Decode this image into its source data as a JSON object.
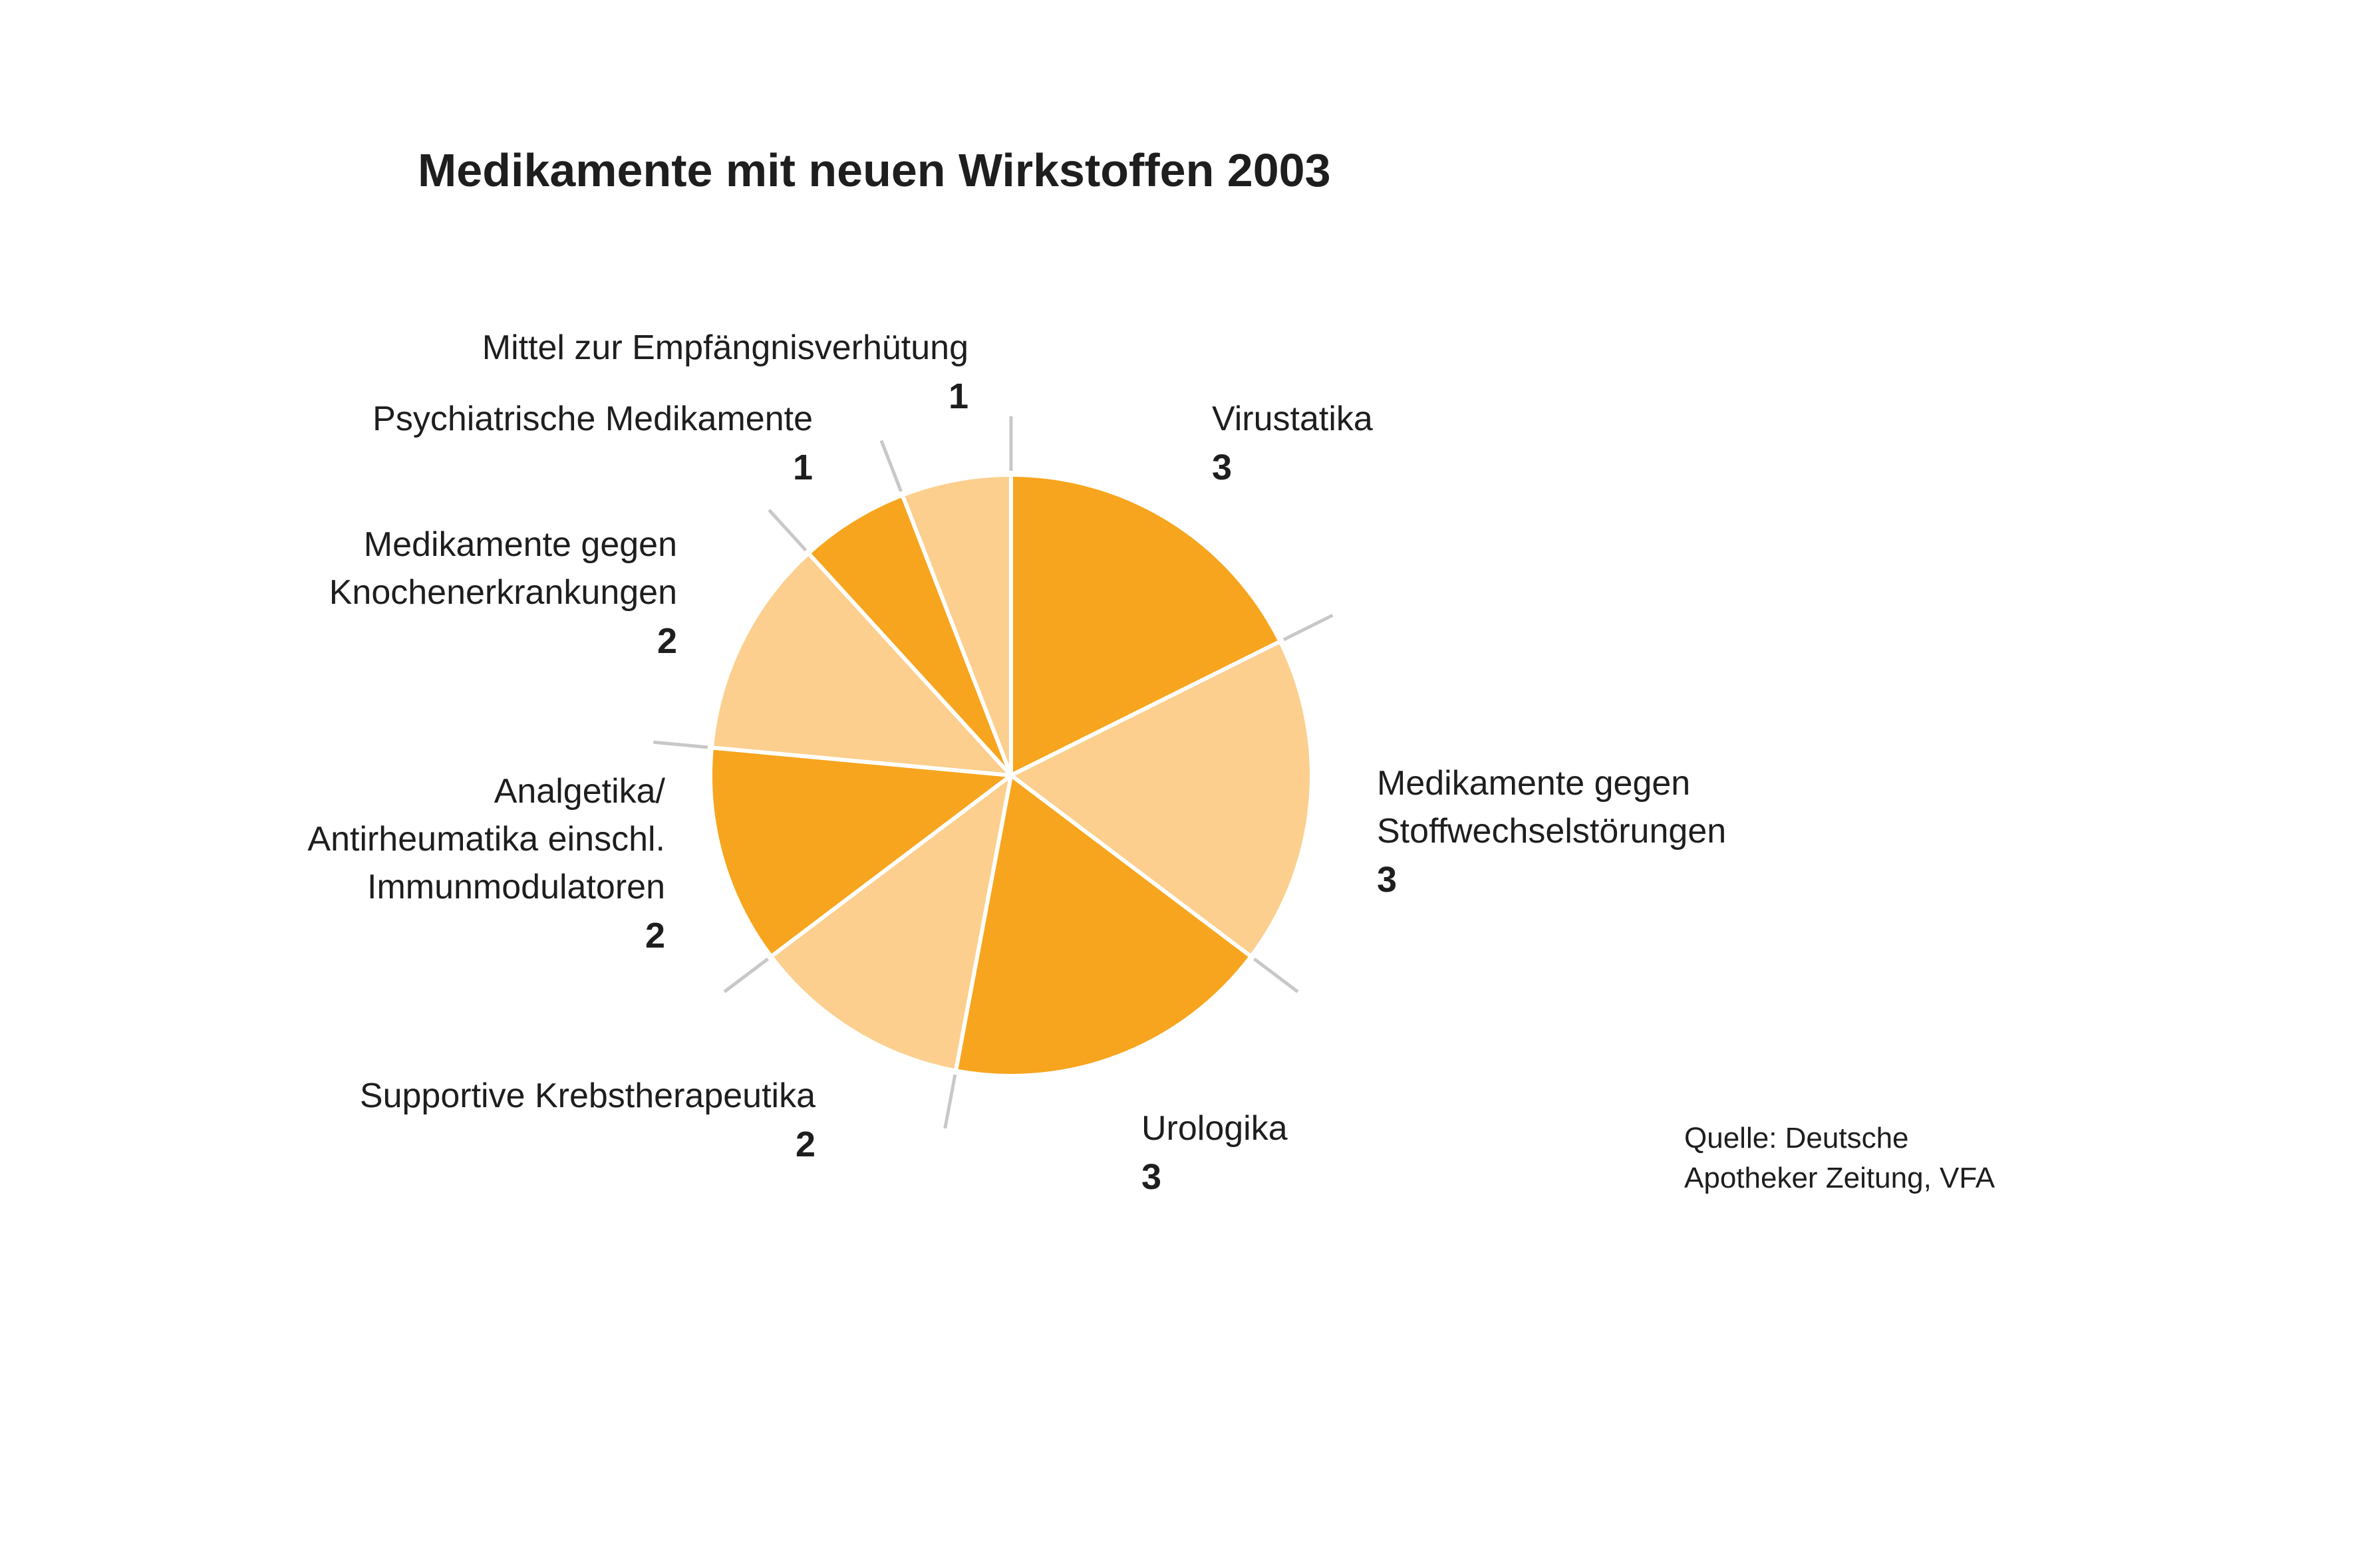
{
  "chart_data": {
    "type": "pie",
    "title": "Medikamente mit neuen Wirkstoffen 2003",
    "slices": [
      {
        "label": [
          "Virustatika"
        ],
        "value": 3,
        "value_text": "3",
        "color": "#F7A51E"
      },
      {
        "label": [
          "Medikamente gegen",
          "Stoffwechselstörungen"
        ],
        "value": 3,
        "value_text": "3",
        "color": "#FCCF8E"
      },
      {
        "label": [
          "Urologika"
        ],
        "value": 3,
        "value_text": "3",
        "color": "#F7A51E"
      },
      {
        "label": [
          "Supportive Krebstherapeutika"
        ],
        "value": 2,
        "value_text": "2",
        "color": "#FCCF8E"
      },
      {
        "label": [
          "Analgetika/",
          "Antirheumatika einschl.",
          "Immunmodulatoren"
        ],
        "value": 2,
        "value_text": "2",
        "color": "#F7A51E"
      },
      {
        "label": [
          "Medikamente gegen",
          "Knochenerkrankungen"
        ],
        "value": 2,
        "value_text": "2",
        "color": "#FCCF8E"
      },
      {
        "label": [
          "Psychiatrische Medikamente"
        ],
        "value": 1,
        "value_text": "1",
        "color": "#F7A51E"
      },
      {
        "label": [
          "Mittel zur Empfängnisverhütung"
        ],
        "value": 1,
        "value_text": "1",
        "color": "#FCCF8E"
      }
    ],
    "start": "12 o'clock",
    "direction": "clockwise",
    "source": [
      "Quelle: Deutsche",
      "Apotheker Zeitung, VFA"
    ]
  },
  "colors": {
    "separator": "#FFFFFF",
    "leader_line": "#C8C8C8",
    "text": "#1E1E1E"
  }
}
